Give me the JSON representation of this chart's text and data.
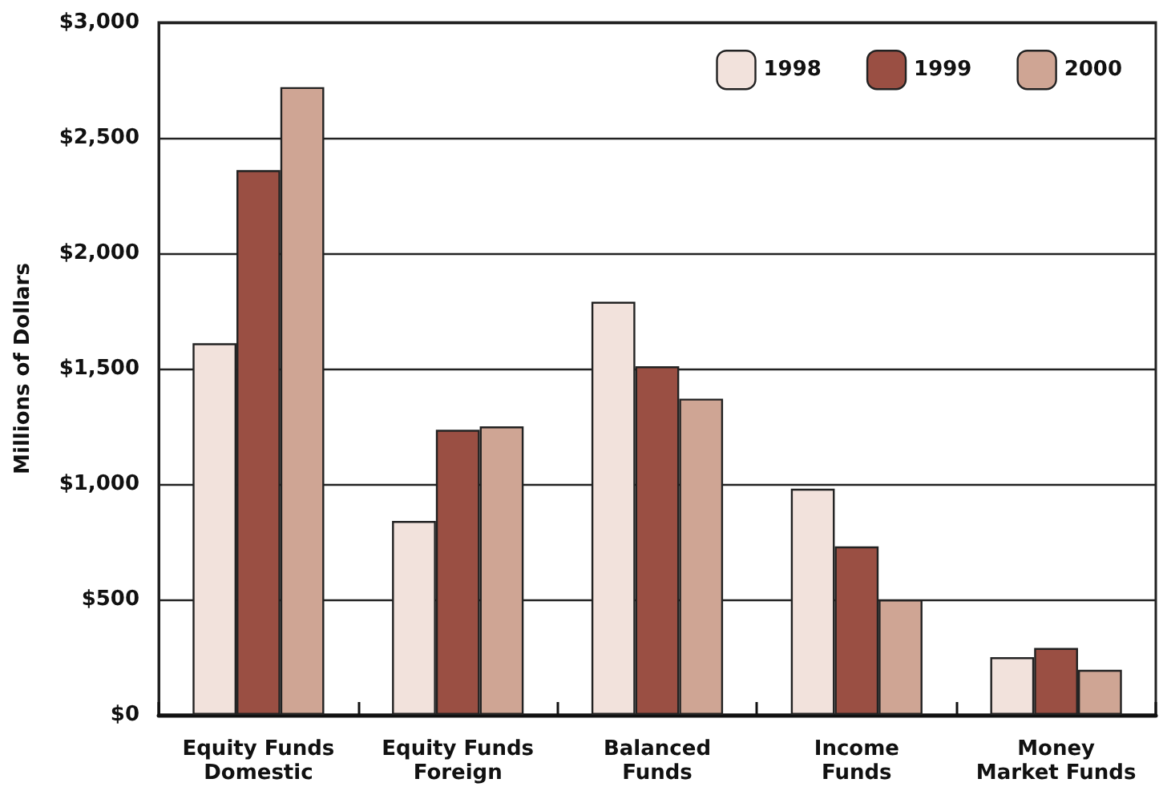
{
  "chart_data": {
    "type": "bar",
    "ylabel": "Millions of Dollars",
    "categories": [
      "Equity Funds\nDomestic",
      "Equity Funds\nForeign",
      "Balanced\nFunds",
      "Income\nFunds",
      "Money\nMarket Funds"
    ],
    "series": [
      {
        "name": "1998",
        "color": "#f2e2dc",
        "values": [
          1610,
          840,
          1790,
          980,
          250
        ]
      },
      {
        "name": "1999",
        "color": "#9a4f43",
        "values": [
          2360,
          1235,
          1510,
          730,
          290
        ]
      },
      {
        "name": "2000",
        "color": "#cfa594",
        "values": [
          2720,
          1250,
          1370,
          500,
          195
        ]
      }
    ],
    "ylim": [
      0,
      3000
    ],
    "yticks": [
      {
        "value": 0,
        "label": "$0"
      },
      {
        "value": 500,
        "label": "$500"
      },
      {
        "value": 1000,
        "label": "$1,000"
      },
      {
        "value": 1500,
        "label": "$1,500"
      },
      {
        "value": 2000,
        "label": "$2,000"
      },
      {
        "value": 2500,
        "label": "$2,500"
      },
      {
        "value": 3000,
        "label": "$3,000"
      }
    ],
    "grid": "y",
    "legend": "top right"
  }
}
